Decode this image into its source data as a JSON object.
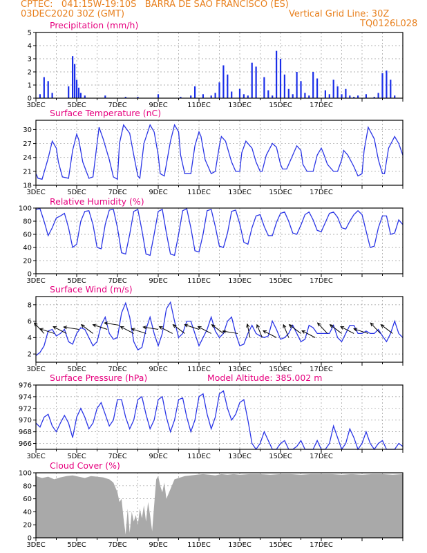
{
  "header": {
    "line1_left": "CPTEC:   041:15W-19:10S   BARRA DE SAO FRANCISCO (ES)",
    "line2_left": "03DEC2020 30Z (GMT)",
    "line2_right": "Vertical Grid Line: 30Z",
    "line3_right": "TQ0126L028"
  },
  "x_tick_labels": [
    "3DEC",
    "5DEC",
    "7DEC",
    "9DEC",
    "11DEC",
    "13DEC",
    "15DEC",
    "17DEC"
  ],
  "colors": {
    "header": "#e8801e",
    "panel_title": "#e6007e",
    "line": "#2a35e6",
    "bars": "#1a2ee8",
    "cloud": "#a9a9a9",
    "grid": "#999999"
  },
  "chart_data": [
    {
      "id": "precip",
      "type": "bar",
      "title": "Precipitation (mm/h)",
      "ylim": [
        0,
        5
      ],
      "yticks": [
        0,
        1,
        2,
        3,
        4,
        5
      ],
      "grid": true,
      "x": [
        0.2,
        0.4,
        0.6,
        0.8,
        1.6,
        1.8,
        1.9,
        2.0,
        2.1,
        2.2,
        2.4,
        3.4,
        4.4,
        5.0,
        6.0,
        7.1,
        7.6,
        7.8,
        8.2,
        8.6,
        8.8,
        9.0,
        9.2,
        9.4,
        9.6,
        10.0,
        10.2,
        10.4,
        10.6,
        10.8,
        11.2,
        11.4,
        11.6,
        11.8,
        12.0,
        12.2,
        12.4,
        12.6,
        12.8,
        13.0,
        13.2,
        13.4,
        13.6,
        13.8,
        14.2,
        14.4,
        14.6,
        14.8,
        15.0,
        15.2,
        15.4,
        15.6,
        15.8,
        16.2,
        16.6,
        16.8,
        17.0,
        17.2,
        17.4,
        17.6
      ],
      "values": [
        0.3,
        1.6,
        1.3,
        0.4,
        0.9,
        3.2,
        2.6,
        1.4,
        0.8,
        0.4,
        0.2,
        0.2,
        0.1,
        0.1,
        0.3,
        0.1,
        0.2,
        0.9,
        0.3,
        0.2,
        0.4,
        1.2,
        2.5,
        1.8,
        0.5,
        0.7,
        0.3,
        0.2,
        2.7,
        2.4,
        1.6,
        0.6,
        0.2,
        3.6,
        3.0,
        1.8,
        0.7,
        0.3,
        2.0,
        1.3,
        0.4,
        0.2,
        2.0,
        1.5,
        0.6,
        0.3,
        1.4,
        0.9,
        0.3,
        0.7,
        0.2,
        0.1,
        0.2,
        0.3,
        0.1,
        0.4,
        1.9,
        2.1,
        1.4,
        0.2
      ]
    },
    {
      "id": "temp",
      "type": "line",
      "title": "Surface Temperature (nC)",
      "ylim": [
        18,
        32
      ],
      "yticks": [
        18,
        21,
        24,
        27,
        30
      ],
      "grid": true,
      "x": [
        0,
        0.1,
        0.3,
        0.6,
        0.8,
        1.0,
        1.1,
        1.3,
        1.6,
        1.8,
        2.0,
        2.1,
        2.3,
        2.6,
        2.8,
        3.0,
        3.1,
        3.3,
        3.6,
        3.8,
        4.0,
        4.1,
        4.3,
        4.6,
        4.8,
        5.0,
        5.1,
        5.3,
        5.6,
        5.8,
        6.0,
        6.1,
        6.3,
        6.6,
        6.8,
        7.0,
        7.1,
        7.3,
        7.6,
        7.8,
        8.0,
        8.1,
        8.3,
        8.6,
        8.8,
        9.0,
        9.1,
        9.3,
        9.6,
        9.8,
        10.0,
        10.1,
        10.3,
        10.6,
        10.8,
        11.0,
        11.1,
        11.3,
        11.6,
        11.8,
        12.0,
        12.1,
        12.3,
        12.6,
        12.8,
        13.0,
        13.1,
        13.3,
        13.6,
        13.8,
        14.0,
        14.1,
        14.3,
        14.6,
        14.8,
        15.0,
        15.1,
        15.3,
        15.6,
        15.8,
        16.0,
        16.1,
        16.3,
        16.6,
        16.8,
        17.0,
        17.1,
        17.3,
        17.6,
        17.8,
        18.0
      ],
      "values": [
        20.5,
        19.5,
        19.3,
        23.8,
        27.5,
        26.0,
        23.0,
        19.8,
        19.5,
        25.5,
        29.0,
        27.8,
        23.0,
        19.5,
        19.8,
        27.0,
        30.5,
        28.0,
        23.5,
        19.8,
        19.3,
        27.0,
        31.0,
        29.2,
        24.5,
        20.0,
        19.5,
        27.0,
        31.0,
        29.5,
        24.5,
        20.5,
        20.0,
        27.5,
        31.0,
        29.5,
        24.5,
        20.5,
        20.5,
        26.5,
        29.5,
        28.5,
        23.5,
        20.5,
        21.0,
        26.5,
        28.5,
        27.5,
        23.0,
        21.0,
        21.0,
        25.0,
        27.5,
        26.0,
        23.0,
        21.0,
        21.0,
        24.5,
        27.0,
        26.2,
        22.5,
        21.5,
        21.5,
        24.5,
        26.5,
        25.5,
        22.5,
        21.0,
        21.0,
        24.5,
        26.0,
        25.0,
        22.5,
        21.0,
        21.0,
        23.5,
        25.5,
        24.5,
        22.0,
        20.0,
        20.5,
        25.5,
        30.5,
        28.0,
        23.5,
        20.5,
        20.5,
        26.0,
        28.5,
        27.0,
        24.5
      ]
    },
    {
      "id": "rh",
      "type": "line",
      "title": "Relative Humidity (%)",
      "ylim": [
        0,
        100
      ],
      "yticks": [
        0,
        20,
        40,
        60,
        80,
        100
      ],
      "grid": true,
      "x": [
        0,
        0.2,
        0.4,
        0.6,
        0.8,
        1.0,
        1.2,
        1.4,
        1.6,
        1.8,
        2.0,
        2.2,
        2.4,
        2.6,
        2.8,
        3.0,
        3.2,
        3.4,
        3.6,
        3.8,
        4.0,
        4.2,
        4.4,
        4.6,
        4.8,
        5.0,
        5.2,
        5.4,
        5.6,
        5.8,
        6.0,
        6.2,
        6.4,
        6.6,
        6.8,
        7.0,
        7.2,
        7.4,
        7.6,
        7.8,
        8.0,
        8.2,
        8.4,
        8.6,
        8.8,
        9.0,
        9.2,
        9.4,
        9.6,
        9.8,
        10.0,
        10.2,
        10.4,
        10.6,
        10.8,
        11.0,
        11.2,
        11.4,
        11.6,
        11.8,
        12.0,
        12.2,
        12.4,
        12.6,
        12.8,
        13.0,
        13.2,
        13.4,
        13.6,
        13.8,
        14.0,
        14.2,
        14.4,
        14.6,
        14.8,
        15.0,
        15.2,
        15.4,
        15.6,
        15.8,
        16.0,
        16.2,
        16.4,
        16.6,
        16.8,
        17.0,
        17.2,
        17.4,
        17.6,
        17.8,
        18.0
      ],
      "values": [
        98,
        99,
        80,
        58,
        70,
        85,
        88,
        92,
        70,
        40,
        45,
        80,
        95,
        96,
        75,
        40,
        38,
        75,
        97,
        98,
        70,
        32,
        30,
        60,
        95,
        98,
        66,
        30,
        28,
        60,
        95,
        98,
        62,
        30,
        28,
        60,
        96,
        99,
        70,
        35,
        33,
        60,
        96,
        98,
        72,
        42,
        40,
        62,
        95,
        97,
        76,
        48,
        45,
        70,
        88,
        90,
        72,
        58,
        58,
        78,
        92,
        94,
        80,
        62,
        60,
        74,
        90,
        94,
        82,
        66,
        64,
        78,
        92,
        94,
        86,
        70,
        68,
        80,
        90,
        96,
        90,
        65,
        40,
        42,
        70,
        88,
        88,
        60,
        62,
        82,
        75
      ]
    },
    {
      "id": "wind",
      "type": "line",
      "title": "Surface Wind (m/s)",
      "ylim": [
        1,
        9
      ],
      "yticks": [
        2,
        4,
        6,
        8
      ],
      "grid": true,
      "x": [
        0,
        0.2,
        0.4,
        0.6,
        0.8,
        1.0,
        1.2,
        1.4,
        1.6,
        1.8,
        2.0,
        2.2,
        2.4,
        2.6,
        2.8,
        3.0,
        3.2,
        3.4,
        3.6,
        3.8,
        4.0,
        4.2,
        4.4,
        4.6,
        4.8,
        5.0,
        5.2,
        5.4,
        5.6,
        5.8,
        6.0,
        6.2,
        6.4,
        6.6,
        6.8,
        7.0,
        7.2,
        7.4,
        7.6,
        7.8,
        8.0,
        8.2,
        8.4,
        8.6,
        8.8,
        9.0,
        9.2,
        9.4,
        9.6,
        9.8,
        10.0,
        10.2,
        10.4,
        10.6,
        10.8,
        11.0,
        11.2,
        11.4,
        11.6,
        11.8,
        12.0,
        12.2,
        12.4,
        12.6,
        12.8,
        13.0,
        13.2,
        13.4,
        13.6,
        13.8,
        14.0,
        14.2,
        14.4,
        14.6,
        14.8,
        15.0,
        15.2,
        15.4,
        15.6,
        15.8,
        16.0,
        16.2,
        16.4,
        16.6,
        16.8,
        17.0,
        17.2,
        17.4,
        17.6,
        17.8,
        18.0
      ],
      "values": [
        1.8,
        2.2,
        3.0,
        4.8,
        5.0,
        4.2,
        4.5,
        5.0,
        3.5,
        3.2,
        4.5,
        5.2,
        5.0,
        4.0,
        3.0,
        3.5,
        5.5,
        6.5,
        4.5,
        3.8,
        4.0,
        7.0,
        8.2,
        6.5,
        3.5,
        2.5,
        2.8,
        5.0,
        6.5,
        4.5,
        3.0,
        4.5,
        7.5,
        8.3,
        6.0,
        4.0,
        4.5,
        6.0,
        6.0,
        4.5,
        3.0,
        4.0,
        5.0,
        6.5,
        4.8,
        4.0,
        4.5,
        6.0,
        6.5,
        4.5,
        3.0,
        3.2,
        4.5,
        5.5,
        4.5,
        4.2,
        4.0,
        4.2,
        6.0,
        5.0,
        3.8,
        4.0,
        4.5,
        5.5,
        4.5,
        3.5,
        3.8,
        5.5,
        5.2,
        4.5,
        4.5,
        4.5,
        4.5,
        5.5,
        4.0,
        3.5,
        4.5,
        5.5,
        5.5,
        4.5,
        4.5,
        4.8,
        4.5,
        4.5,
        5.0,
        4.2,
        3.5,
        4.5,
        6.0,
        4.5,
        4.0
      ],
      "barbs": {
        "x": [
          0.4,
          0.9,
          1.5,
          2.1,
          2.8,
          3.5,
          4.1,
          4.8,
          5.4,
          6.0,
          6.7,
          7.3,
          8.0,
          8.6,
          9.2,
          9.9,
          10.5,
          11.1,
          11.8,
          12.4,
          13.0,
          13.7,
          14.3,
          15.0,
          15.6,
          16.3,
          16.9,
          17.5
        ],
        "speed": [
          4.5,
          4.5,
          4.5,
          5.0,
          4.5,
          5.0,
          5.5,
          4.5,
          4.5,
          5.0,
          4.5,
          4.5,
          5.0,
          4.5,
          4.5,
          4.5,
          4.0,
          4.0,
          4.0,
          4.0,
          4.5,
          4.0,
          4.5,
          4.5,
          4.5,
          4.5,
          4.5,
          4.5
        ],
        "dir_deg": [
          220,
          250,
          240,
          260,
          230,
          250,
          260,
          240,
          250,
          260,
          240,
          230,
          250,
          240,
          230,
          260,
          190,
          200,
          240,
          200,
          230,
          240,
          220,
          230,
          240,
          250,
          220,
          230
        ]
      }
    },
    {
      "id": "pressure",
      "type": "line",
      "title": "Surface Pressure (hPa)",
      "ylim": [
        965,
        976
      ],
      "yticks": [
        966,
        968,
        970,
        972,
        974,
        976
      ],
      "grid": true,
      "x": [
        0,
        0.2,
        0.4,
        0.6,
        0.8,
        1.0,
        1.2,
        1.4,
        1.6,
        1.8,
        2.0,
        2.2,
        2.4,
        2.6,
        2.8,
        3.0,
        3.2,
        3.4,
        3.6,
        3.8,
        4.0,
        4.2,
        4.4,
        4.6,
        4.8,
        5.0,
        5.2,
        5.4,
        5.6,
        5.8,
        6.0,
        6.2,
        6.4,
        6.6,
        6.8,
        7.0,
        7.2,
        7.4,
        7.6,
        7.8,
        8.0,
        8.2,
        8.4,
        8.6,
        8.8,
        9.0,
        9.2,
        9.4,
        9.6,
        9.8,
        10.0,
        10.2,
        10.4,
        10.6,
        10.8,
        11.0,
        11.2,
        11.4,
        11.6,
        11.8,
        12.0,
        12.2,
        12.4,
        12.6,
        12.8,
        13.0,
        13.2,
        13.4,
        13.6,
        13.8,
        14.0,
        14.2,
        14.4,
        14.6,
        14.8,
        15.0,
        15.2,
        15.4,
        15.6,
        15.8,
        16.0,
        16.2,
        16.4,
        16.6,
        16.8,
        17.0,
        17.2,
        17.4,
        17.6,
        17.8,
        18.0
      ],
      "values": [
        969.5,
        968.8,
        970.5,
        971.0,
        969.0,
        968.0,
        969.5,
        970.8,
        969.5,
        967.0,
        970.5,
        972.0,
        970.5,
        968.5,
        969.5,
        972.0,
        973.0,
        971.0,
        969.0,
        970.0,
        973.5,
        973.5,
        970.5,
        968.5,
        970.0,
        973.5,
        974.0,
        971.0,
        968.5,
        970.0,
        973.5,
        974.0,
        970.5,
        968.0,
        970.0,
        973.5,
        973.8,
        970.5,
        968.0,
        970.0,
        974.0,
        974.5,
        971.0,
        968.5,
        970.5,
        974.5,
        975.0,
        972.0,
        970.0,
        971.0,
        973.0,
        973.5,
        970.0,
        966.0,
        965.0,
        966.0,
        968.0,
        966.5,
        965.0,
        964.5,
        966.0,
        966.5,
        964.0,
        963.5,
        965.5,
        966.5,
        964.5,
        964.0,
        965.0,
        966.5,
        964.5,
        964.0,
        966.0,
        969.0,
        967.0,
        965.0,
        966.0,
        968.5,
        967.0,
        965.0,
        966.0,
        968.0,
        966.0,
        964.5,
        966.0,
        966.5,
        965.0,
        964.5,
        965.0,
        966.0,
        965.5
      ]
    },
    {
      "id": "cloud",
      "type": "area",
      "title": "Cloud Cover (%)",
      "ylim": [
        0,
        100
      ],
      "yticks": [
        0,
        20,
        40,
        60,
        80,
        100
      ],
      "grid": true,
      "x": [
        0,
        0.3,
        0.6,
        0.9,
        1.2,
        1.5,
        1.8,
        2.1,
        2.4,
        2.7,
        3.0,
        3.3,
        3.6,
        3.8,
        4.0,
        4.1,
        4.2,
        4.3,
        4.4,
        4.5,
        4.6,
        4.7,
        4.8,
        4.9,
        5.0,
        5.1,
        5.2,
        5.3,
        5.4,
        5.5,
        5.6,
        5.7,
        5.8,
        5.9,
        6.0,
        6.1,
        6.2,
        6.3,
        6.4,
        6.6,
        6.8,
        7.0,
        7.3,
        7.6,
        7.9,
        8.2,
        8.5,
        8.8,
        9.1,
        9.4,
        9.7,
        10.0,
        10.5,
        11.0,
        11.5,
        12.0,
        12.5,
        13.0,
        13.5,
        14.0,
        14.5,
        15.0,
        15.5,
        16.0,
        16.5,
        17.0,
        17.5,
        18.0
      ],
      "values": [
        95,
        92,
        94,
        90,
        93,
        95,
        96,
        94,
        92,
        95,
        94,
        93,
        90,
        85,
        70,
        55,
        60,
        30,
        5,
        45,
        8,
        40,
        25,
        35,
        20,
        45,
        30,
        50,
        25,
        55,
        35,
        10,
        50,
        90,
        95,
        80,
        70,
        85,
        60,
        75,
        90,
        92,
        95,
        96,
        97,
        98,
        97,
        96,
        98,
        97,
        98,
        97,
        98,
        98,
        97,
        98,
        98,
        97,
        98,
        98,
        98,
        97,
        98,
        97,
        98,
        98,
        97,
        98
      ]
    }
  ],
  "panel_titles": {
    "precip": "Precipitation (mm/h)",
    "temp": "Surface Temperature (nC)",
    "rh": "Relative Humidity (%)",
    "wind": "Surface Wind (m/s)",
    "pressure": "Surface Pressure (hPa)",
    "pressure_extra": "Model Altitude: 385.002 m",
    "cloud": "Cloud Cover (%)"
  }
}
